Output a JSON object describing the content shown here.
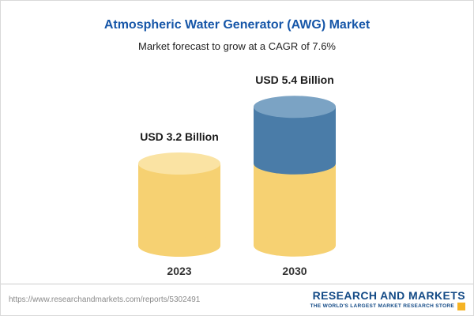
{
  "chart_data": {
    "type": "bar",
    "title": "Atmospheric Water Generator (AWG) Market",
    "subtitle": "Market forecast to grow at a CAGR of 7.6%",
    "unit": "USD Billion",
    "cagr": "7.6%",
    "categories": [
      "2023",
      "2030"
    ],
    "values": [
      3.2,
      5.4
    ],
    "value_labels": [
      "USD 3.2 Billion",
      "USD 5.4 Billion"
    ],
    "grid": false,
    "legend_position": "none",
    "bars": [
      {
        "category": "2023",
        "total": 3.2,
        "segments": [
          {
            "value": 3.2,
            "color": "#F6D172",
            "cap": "#FAE3A3"
          }
        ]
      },
      {
        "category": "2030",
        "total": 5.4,
        "segments": [
          {
            "value": 3.2,
            "color": "#F6D172",
            "cap": "#FAE3A3"
          },
          {
            "value": 2.2,
            "color": "#4A7CA8",
            "cap": "#7BA3C4"
          }
        ]
      }
    ]
  },
  "footer": {
    "url": "https://www.researchandmarkets.com/reports/5302491",
    "brand": {
      "name": "RESEARCH AND MARKETS",
      "tagline": "THE WORLD'S LARGEST MARKET RESEARCH STORE"
    }
  },
  "colors": {
    "title_blue": "#1656A8",
    "bar_yellow": "#F6D172",
    "bar_blue": "#4A7CA8",
    "brand_blue": "#134A86",
    "brand_gold": "#F5B324"
  }
}
